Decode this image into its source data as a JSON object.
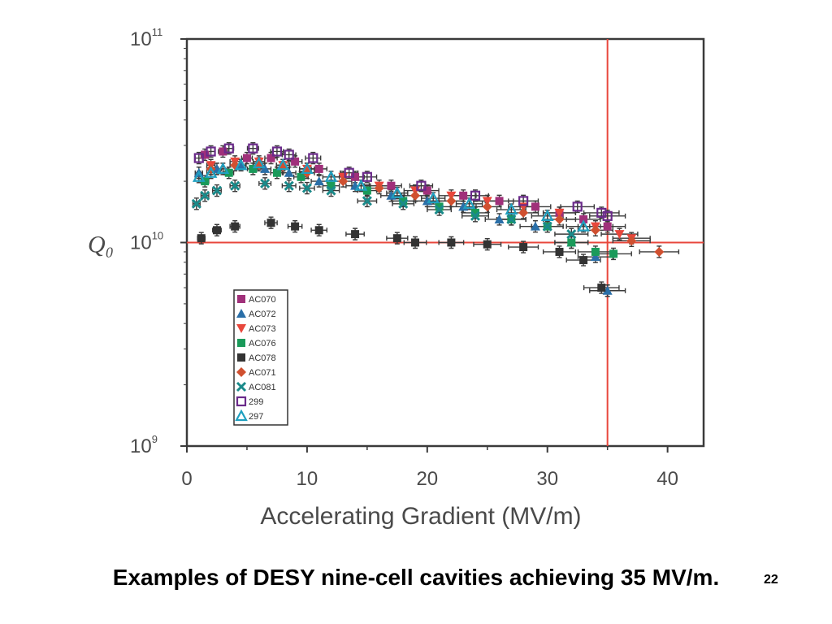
{
  "caption": "Examples of DESY nine-cell cavities achieving 35 MV/m.",
  "page_number": "22",
  "colors": {
    "reference_line": "#e8473c",
    "frame": "#3a3a3a"
  },
  "chart_data": {
    "type": "scatter",
    "title": "",
    "xlabel": "Accelerating Gradient (MV/m)",
    "ylabel": "Q₀",
    "xlim": [
      0,
      43
    ],
    "ylim": [
      1000000000.0,
      100000000000.0
    ],
    "y_scale": "log",
    "x_ticks": [
      "0",
      "10",
      "20",
      "30",
      "40"
    ],
    "x_tick_values": [
      0,
      10,
      20,
      30,
      40
    ],
    "y_ticks": [
      {
        "base": "10",
        "exp": "9",
        "value": 1000000000.0
      },
      {
        "base": "10",
        "exp": "10",
        "value": 10000000000.0
      },
      {
        "base": "10",
        "exp": "11",
        "value": 100000000000.0
      }
    ],
    "reference_lines": {
      "x": 35,
      "y": 10000000000.0
    },
    "grid": false,
    "legend_position": "bottom-left",
    "series": [
      {
        "name": "AC070",
        "color": "#a0307a",
        "marker": "square",
        "x": [
          1.5,
          3,
          5,
          7,
          9,
          11,
          14,
          17,
          20,
          23,
          26,
          29,
          31,
          33,
          35
        ],
        "y": [
          27000000000.0,
          28000000000.0,
          26000000000.0,
          26000000000.0,
          25000000000.0,
          23000000000.0,
          21000000000.0,
          19000000000.0,
          18000000000.0,
          17000000000.0,
          16000000000.0,
          15000000000.0,
          14000000000.0,
          13000000000.0,
          12000000000.0
        ]
      },
      {
        "name": "AC072",
        "color": "#2a6fa8",
        "marker": "triangle",
        "x": [
          1,
          2.5,
          4.5,
          6.5,
          8.5,
          11,
          14,
          17,
          20,
          23,
          26,
          29,
          32,
          34,
          35
        ],
        "y": [
          22000000000.0,
          23000000000.0,
          24000000000.0,
          23000000000.0,
          22000000000.0,
          20000000000.0,
          19000000000.0,
          17000000000.0,
          16000000000.0,
          15000000000.0,
          13000000000.0,
          12000000000.0,
          10000000000.0,
          8500000000.0,
          5800000000.0
        ]
      },
      {
        "name": "AC073",
        "color": "#e8473c",
        "marker": "triangle-down",
        "x": [
          2,
          4,
          6,
          8,
          10,
          13,
          16,
          19,
          22,
          25,
          28,
          31,
          34,
          36,
          37
        ],
        "y": [
          24000000000.0,
          25000000000.0,
          25000000000.0,
          24000000000.0,
          23000000000.0,
          21000000000.0,
          19000000000.0,
          18000000000.0,
          17000000000.0,
          16000000000.0,
          15000000000.0,
          14000000000.0,
          12000000000.0,
          11000000000.0,
          10500000000.0
        ]
      },
      {
        "name": "AC076",
        "color": "#1a9a5a",
        "marker": "square",
        "x": [
          1.5,
          3.5,
          5.5,
          7.5,
          9.5,
          12,
          15,
          18,
          21,
          24,
          27,
          30,
          32,
          34,
          35.5
        ],
        "y": [
          20000000000.0,
          22000000000.0,
          23000000000.0,
          22000000000.0,
          21000000000.0,
          19000000000.0,
          18000000000.0,
          16000000000.0,
          15000000000.0,
          14000000000.0,
          13000000000.0,
          12000000000.0,
          10000000000.0,
          9000000000.0,
          8800000000.0
        ]
      },
      {
        "name": "AC078",
        "color": "#333333",
        "marker": "square",
        "x": [
          1.2,
          2.5,
          4,
          7,
          9,
          11,
          14,
          17.5,
          19,
          22,
          25,
          28,
          31,
          33,
          34.5
        ],
        "y": [
          10500000000.0,
          11500000000.0,
          12000000000.0,
          12500000000.0,
          12000000000.0,
          11500000000.0,
          11000000000.0,
          10500000000.0,
          10000000000.0,
          10000000000.0,
          9800000000.0,
          9500000000.0,
          9000000000.0,
          8200000000.0,
          6000000000.0
        ]
      },
      {
        "name": "AC071",
        "color": "#d05030",
        "marker": "diamond",
        "x": [
          2,
          4,
          6,
          8,
          10,
          13,
          16,
          19,
          22,
          25,
          28,
          31,
          34,
          37,
          39.3
        ],
        "y": [
          23000000000.0,
          24000000000.0,
          24000000000.0,
          23500000000.0,
          22000000000.0,
          20000000000.0,
          18500000000.0,
          17000000000.0,
          16000000000.0,
          15000000000.0,
          14000000000.0,
          13000000000.0,
          11500000000.0,
          10200000000.0,
          9000000000.0
        ]
      },
      {
        "name": "AC081",
        "color": "#1a8a8a",
        "marker": "cross",
        "x": [
          0.8,
          1.5,
          2.5,
          4,
          6.5,
          8.5,
          10,
          12,
          15,
          18,
          21,
          24,
          27,
          30,
          32
        ],
        "y": [
          15500000000.0,
          17000000000.0,
          18000000000.0,
          19000000000.0,
          19500000000.0,
          19000000000.0,
          18500000000.0,
          18000000000.0,
          16000000000.0,
          15500000000.0,
          14500000000.0,
          13500000000.0,
          13000000000.0,
          12000000000.0,
          11000000000.0
        ]
      },
      {
        "name": "299",
        "color": "#6a2a8a",
        "marker": "open-square",
        "x": [
          1,
          2,
          3.5,
          5.5,
          7.5,
          8.5,
          10.5,
          13.5,
          15,
          19.5,
          24,
          28,
          32.5,
          34.5,
          35
        ],
        "y": [
          26000000000.0,
          28000000000.0,
          29000000000.0,
          29000000000.0,
          28000000000.0,
          27000000000.0,
          26000000000.0,
          22000000000.0,
          21000000000.0,
          19000000000.0,
          17000000000.0,
          16000000000.0,
          15000000000.0,
          14000000000.0,
          13500000000.0
        ]
      },
      {
        "name": "297",
        "color": "#20a0c0",
        "marker": "open-triangle",
        "x": [
          1,
          2,
          3,
          4.5,
          6,
          8,
          10,
          12,
          14.5,
          17.5,
          20.5,
          23.5,
          27,
          30,
          33
        ],
        "y": [
          21000000000.0,
          22000000000.0,
          23000000000.0,
          24000000000.0,
          24500000000.0,
          24000000000.0,
          23000000000.0,
          21000000000.0,
          19000000000.0,
          17500000000.0,
          16500000000.0,
          15500000000.0,
          14500000000.0,
          13500000000.0,
          12000000000.0
        ]
      }
    ]
  }
}
